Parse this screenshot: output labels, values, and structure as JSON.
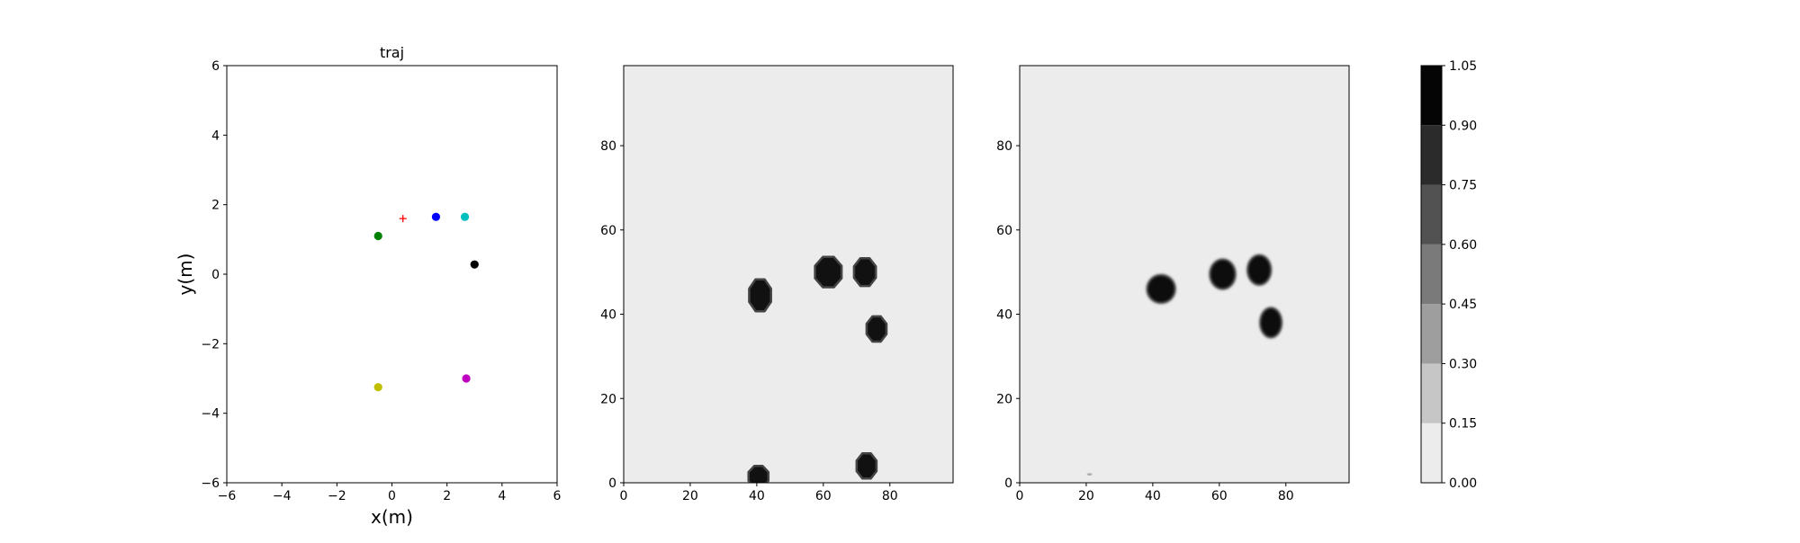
{
  "chart_data": [
    {
      "type": "scatter",
      "title": "traj",
      "xlabel": "x(m)",
      "ylabel": "y(m)",
      "xlim": [
        -6,
        6
      ],
      "ylim": [
        -6,
        6
      ],
      "xticks": [
        -6,
        -4,
        -2,
        0,
        2,
        4,
        6
      ],
      "yticks": [
        -6,
        -4,
        -2,
        0,
        2,
        4,
        6
      ],
      "tick_labels_x": [
        "−6",
        "−4",
        "−2",
        "0",
        "2",
        "4",
        "6"
      ],
      "tick_labels_y": [
        "−6",
        "−4",
        "−2",
        "0",
        "2",
        "4",
        "6"
      ],
      "grid": false,
      "points": [
        {
          "x": -0.5,
          "y": 1.1,
          "color": "#008000",
          "marker": "circle"
        },
        {
          "x": 1.6,
          "y": 1.65,
          "color": "#0000ff",
          "marker": "circle"
        },
        {
          "x": 2.65,
          "y": 1.65,
          "color": "#00bfbf",
          "marker": "circle"
        },
        {
          "x": 3.0,
          "y": 0.28,
          "color": "#000000",
          "marker": "circle"
        },
        {
          "x": -0.5,
          "y": -3.25,
          "color": "#bfbf00",
          "marker": "circle"
        },
        {
          "x": 2.7,
          "y": -3.0,
          "color": "#bf00bf",
          "marker": "circle"
        },
        {
          "x": 0.4,
          "y": 1.6,
          "color": "#ff0000",
          "marker": "plus"
        }
      ]
    },
    {
      "type": "heatmap",
      "title": "",
      "xlim": [
        0,
        99
      ],
      "ylim": [
        0,
        99
      ],
      "xticks": [
        0,
        20,
        40,
        60,
        80
      ],
      "yticks": [
        0,
        20,
        40,
        60,
        80
      ],
      "background_value": 0.05,
      "blobs": [
        {
          "cx": 41,
          "cy": 44.5,
          "rx": 3.3,
          "ry": 3.8,
          "shape": "octagon"
        },
        {
          "cx": 61.5,
          "cy": 50,
          "rx": 4,
          "ry": 3.6,
          "shape": "octagon"
        },
        {
          "cx": 72.5,
          "cy": 50,
          "rx": 3.3,
          "ry": 3.3,
          "shape": "octagon"
        },
        {
          "cx": 76,
          "cy": 36.5,
          "rx": 3,
          "ry": 3,
          "shape": "octagon"
        },
        {
          "cx": 40.5,
          "cy": 1.5,
          "rx": 3,
          "ry": 2.5,
          "shape": "octagon"
        },
        {
          "cx": 73,
          "cy": 4,
          "rx": 3,
          "ry": 3,
          "shape": "octagon"
        }
      ]
    },
    {
      "type": "heatmap",
      "title": "",
      "xlim": [
        0,
        99
      ],
      "ylim": [
        0,
        99
      ],
      "xticks": [
        0,
        20,
        40,
        60,
        80
      ],
      "yticks": [
        0,
        20,
        40,
        60,
        80
      ],
      "background_value": 0.05,
      "blobs": [
        {
          "cx": 42.5,
          "cy": 46,
          "rx": 4.2,
          "ry": 3.3,
          "shape": "ellipse",
          "rotate": -30
        },
        {
          "cx": 61,
          "cy": 49.5,
          "rx": 3.8,
          "ry": 3.5,
          "shape": "ellipse",
          "rotate": 0
        },
        {
          "cx": 72,
          "cy": 50.5,
          "rx": 3.5,
          "ry": 3.5,
          "shape": "ellipse",
          "rotate": 0
        },
        {
          "cx": 75.5,
          "cy": 38,
          "rx": 3.2,
          "ry": 3.5,
          "shape": "ellipse",
          "rotate": 0
        },
        {
          "cx": 21,
          "cy": 2,
          "rx": 0.8,
          "ry": 0.3,
          "shape": "speck",
          "rotate": 0
        }
      ]
    },
    {
      "type": "colorbar",
      "levels": [
        0.0,
        0.15,
        0.3,
        0.45,
        0.6,
        0.75,
        0.9,
        1.05
      ],
      "tick_labels": [
        "0.00",
        "0.15",
        "0.30",
        "0.45",
        "0.60",
        "0.75",
        "0.90",
        "1.05"
      ],
      "colors": [
        "#ececec",
        "#c6c6c6",
        "#9e9e9e",
        "#7a7a7a",
        "#525252",
        "#2b2b2b",
        "#050505"
      ]
    }
  ]
}
